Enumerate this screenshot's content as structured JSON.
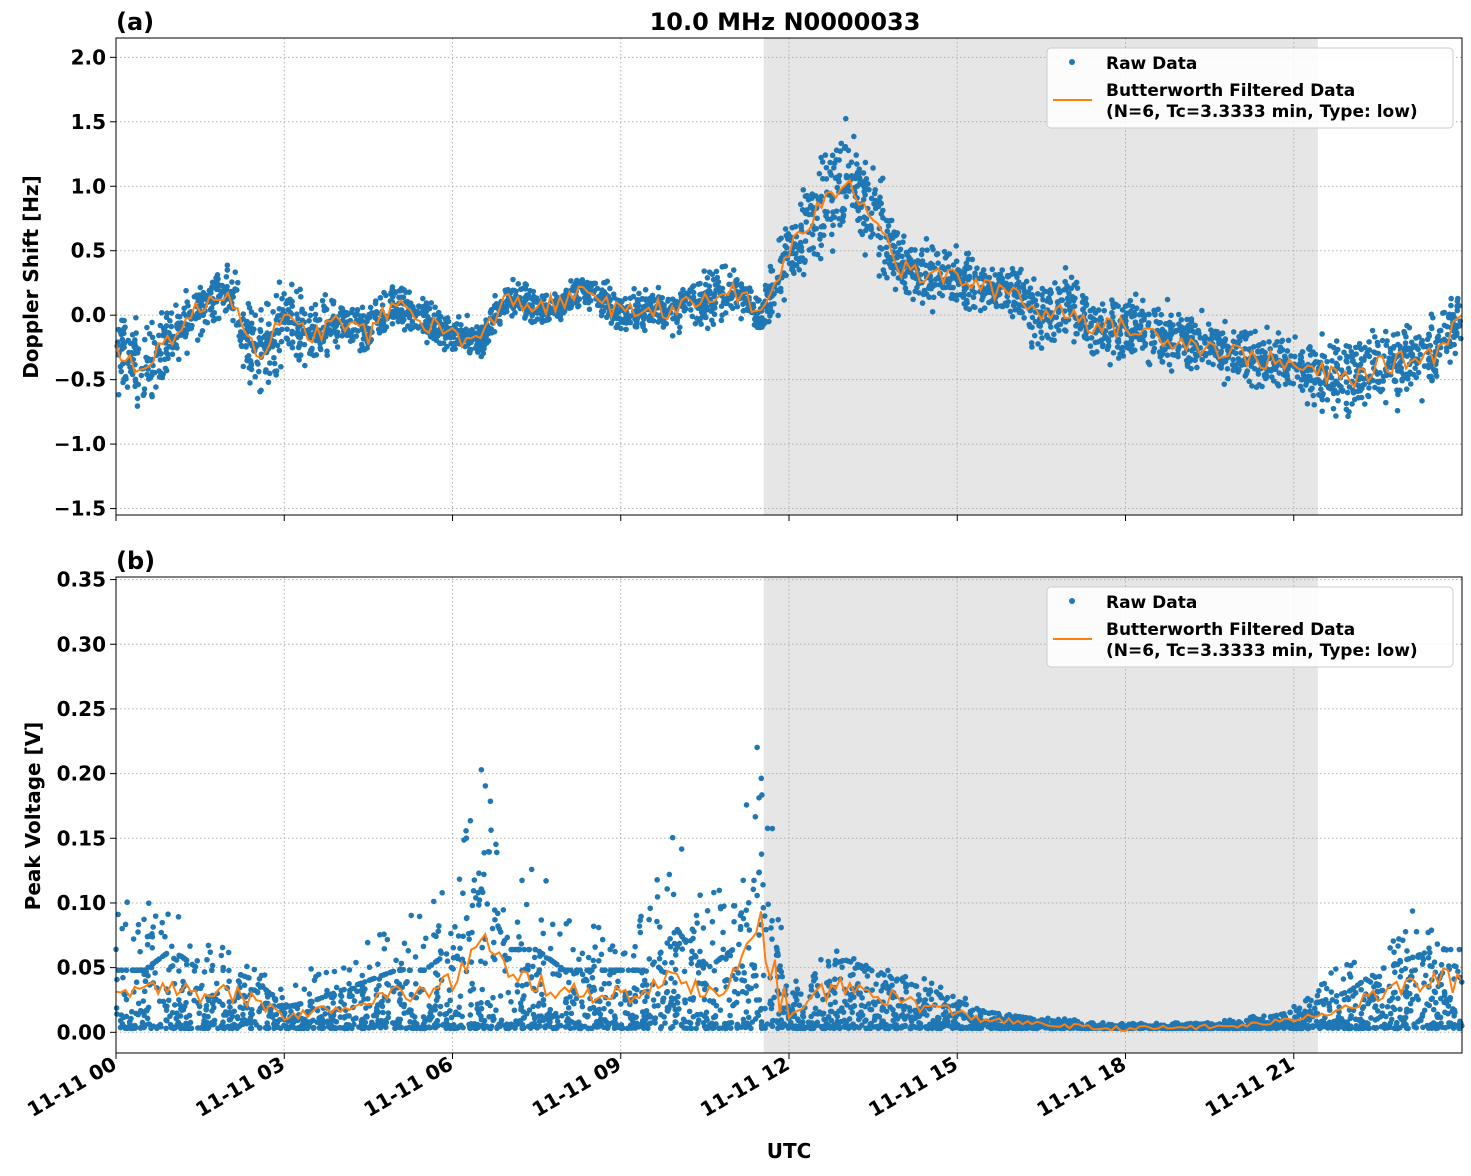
{
  "chart_data": [
    {
      "type": "scatter",
      "panel_label": "(a)",
      "title": "10.0 MHz N0000033",
      "xlabel": "",
      "ylabel": "Doppler Shift [Hz]",
      "ylim": [
        -1.55,
        2.15
      ],
      "xlim_hours": [
        0,
        24
      ],
      "yticks": [
        "2.0",
        "1.5",
        "1.0",
        "0.5",
        "0.0",
        "−0.5",
        "−1.0",
        "−1.5"
      ],
      "ytick_values": [
        2.0,
        1.5,
        1.0,
        0.5,
        0.0,
        -0.5,
        -1.0,
        -1.5
      ],
      "grid": true,
      "shaded_interval_hours": [
        11.55,
        21.43
      ],
      "legend_position": "top-right",
      "legend": [
        "Raw Data",
        "Butterworth Filtered Data",
        "(N=6, Tc=3.3333 min, Type: low)"
      ],
      "x_hours": [
        0,
        0.5,
        1,
        1.5,
        2,
        2.5,
        3,
        3.5,
        4,
        4.5,
        5,
        5.5,
        6,
        6.5,
        7,
        7.5,
        8,
        8.5,
        9,
        9.5,
        10,
        10.5,
        11,
        11.5,
        12,
        12.5,
        13,
        13.5,
        14,
        14.5,
        15,
        15.5,
        16,
        16.5,
        17,
        17.5,
        18,
        18.5,
        19,
        19.5,
        20,
        20.5,
        21,
        21.5,
        22,
        22.5,
        23,
        23.5,
        24
      ],
      "series": [
        {
          "name": "Butterworth Filtered Data",
          "values": [
            -0.3,
            -0.4,
            -0.15,
            0.05,
            0.2,
            -0.3,
            -0.05,
            -0.15,
            -0.05,
            -0.15,
            0.1,
            -0.05,
            -0.15,
            -0.2,
            0.15,
            0.05,
            0.1,
            0.2,
            0.0,
            0.05,
            0.05,
            0.1,
            0.2,
            0.0,
            0.5,
            0.8,
            1.05,
            0.8,
            0.35,
            0.3,
            0.3,
            0.2,
            0.2,
            0.0,
            0.05,
            -0.1,
            -0.1,
            -0.15,
            -0.2,
            -0.25,
            -0.3,
            -0.35,
            -0.4,
            -0.45,
            -0.5,
            -0.4,
            -0.35,
            -0.3,
            0.0
          ]
        },
        {
          "name": "Raw Data",
          "spread": [
            0.4,
            0.5,
            0.3,
            0.3,
            0.3,
            0.45,
            0.45,
            0.35,
            0.25,
            0.25,
            0.3,
            0.25,
            0.2,
            0.2,
            0.2,
            0.2,
            0.2,
            0.2,
            0.25,
            0.2,
            0.25,
            0.3,
            0.25,
            0.2,
            0.45,
            0.55,
            0.6,
            0.55,
            0.35,
            0.35,
            0.3,
            0.3,
            0.3,
            0.4,
            0.4,
            0.35,
            0.35,
            0.35,
            0.35,
            0.3,
            0.3,
            0.3,
            0.3,
            0.35,
            0.4,
            0.4,
            0.4,
            0.35,
            0.35
          ]
        }
      ]
    },
    {
      "type": "scatter",
      "panel_label": "(b)",
      "xlabel": "UTC",
      "ylabel": "Peak Voltage [V]",
      "ylim": [
        -0.016,
        0.352
      ],
      "xlim_hours": [
        0,
        24
      ],
      "yticks": [
        "0.35",
        "0.30",
        "0.25",
        "0.20",
        "0.15",
        "0.10",
        "0.05",
        "0.00"
      ],
      "ytick_values": [
        0.35,
        0.3,
        0.25,
        0.2,
        0.15,
        0.1,
        0.05,
        0.0
      ],
      "xticks": [
        "11-11 00",
        "11-11 03",
        "11-11 06",
        "11-11 09",
        "11-11 12",
        "11-11 15",
        "11-11 18",
        "11-11 21"
      ],
      "xtick_hours": [
        0,
        3,
        6,
        9,
        12,
        15,
        18,
        21
      ],
      "grid": true,
      "shaded_interval_hours": [
        11.55,
        21.43
      ],
      "legend_position": "top-right",
      "legend": [
        "Raw Data",
        "Butterworth Filtered Data",
        "(N=6, Tc=3.3333 min, Type: low)"
      ],
      "x_hours": [
        0,
        0.5,
        1,
        1.5,
        2,
        2.5,
        3,
        3.5,
        4,
        4.5,
        5,
        5.5,
        6,
        6.5,
        7,
        7.5,
        8,
        8.5,
        9,
        9.5,
        10,
        10.5,
        11,
        11.5,
        12,
        12.5,
        13,
        13.5,
        14,
        14.5,
        15,
        15.5,
        16,
        16.5,
        17,
        17.5,
        18,
        18.5,
        19,
        19.5,
        20,
        20.5,
        21,
        21.5,
        22,
        22.5,
        23,
        23.5,
        24
      ],
      "series": [
        {
          "name": "Butterworth Filtered Data",
          "values": [
            0.03,
            0.03,
            0.04,
            0.03,
            0.03,
            0.025,
            0.012,
            0.015,
            0.02,
            0.025,
            0.03,
            0.03,
            0.04,
            0.07,
            0.04,
            0.04,
            0.03,
            0.03,
            0.03,
            0.03,
            0.05,
            0.03,
            0.04,
            0.08,
            0.01,
            0.03,
            0.035,
            0.03,
            0.025,
            0.02,
            0.015,
            0.01,
            0.008,
            0.006,
            0.005,
            0.003,
            0.003,
            0.003,
            0.004,
            0.004,
            0.005,
            0.007,
            0.01,
            0.015,
            0.02,
            0.03,
            0.035,
            0.04,
            0.04
          ]
        },
        {
          "name": "Raw Data",
          "max": [
            0.12,
            0.1,
            0.1,
            0.07,
            0.07,
            0.06,
            0.04,
            0.05,
            0.05,
            0.07,
            0.09,
            0.1,
            0.12,
            0.22,
            0.12,
            0.13,
            0.1,
            0.09,
            0.09,
            0.1,
            0.16,
            0.11,
            0.12,
            0.25,
            0.03,
            0.07,
            0.07,
            0.05,
            0.05,
            0.04,
            0.03,
            0.02,
            0.015,
            0.012,
            0.01,
            0.008,
            0.007,
            0.007,
            0.008,
            0.008,
            0.01,
            0.015,
            0.02,
            0.04,
            0.06,
            0.05,
            0.1,
            0.08,
            0.07
          ],
          "min": 0.003
        }
      ]
    }
  ],
  "colors": {
    "raw": "#1f77b4",
    "filtered": "#ff7f0e",
    "shade": "#e6e6e6",
    "grid": "#b0b0b0"
  }
}
